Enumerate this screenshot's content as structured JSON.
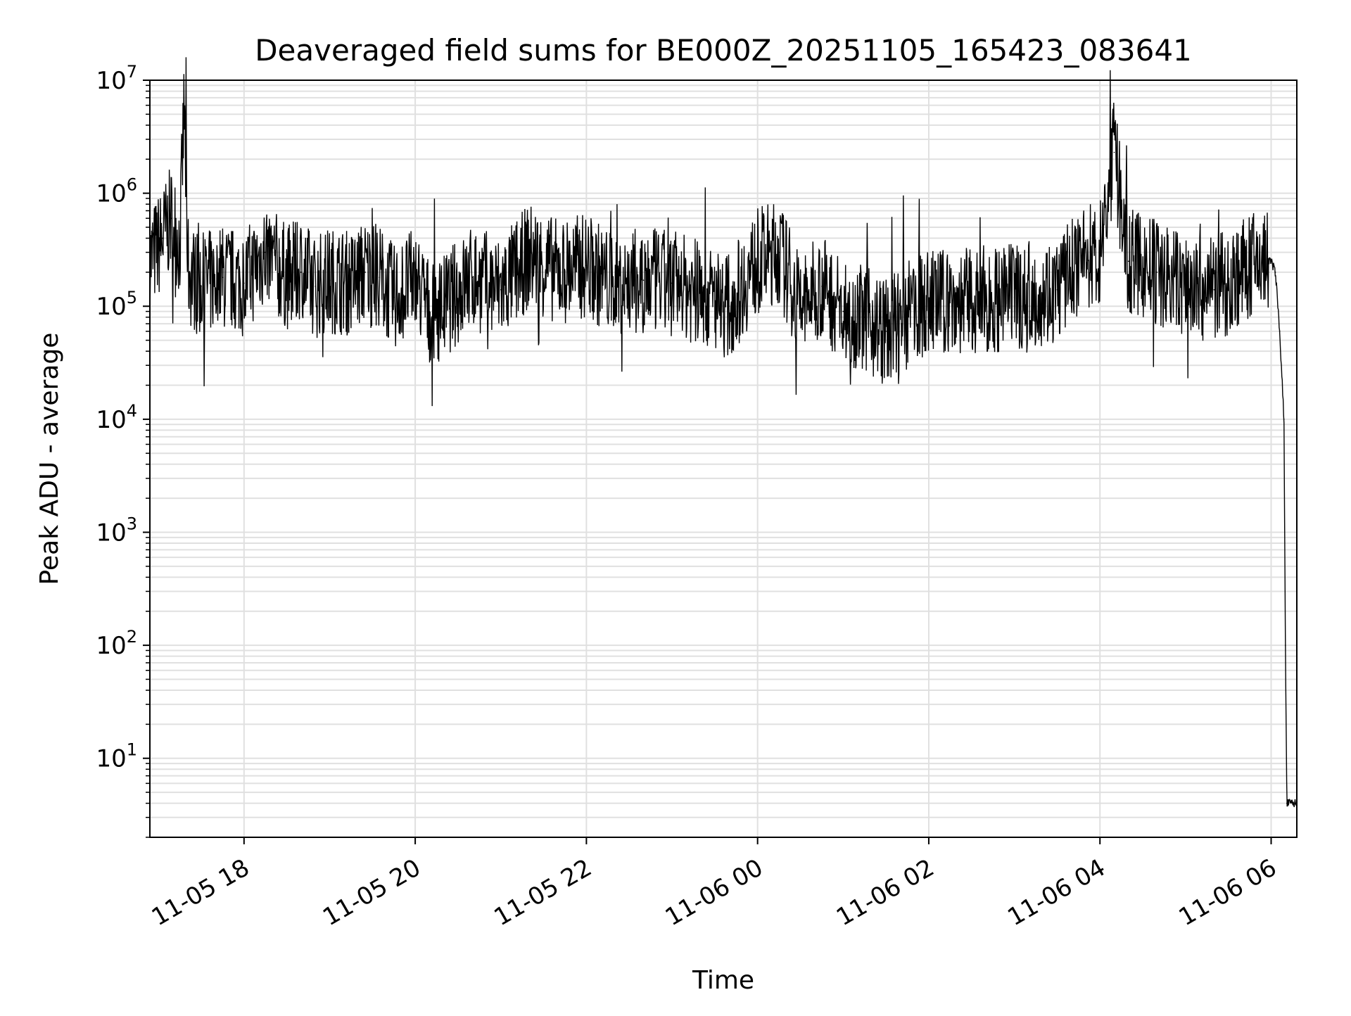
{
  "chart_data": {
    "type": "line",
    "title": "Deaveraged field sums for BE000Z_20251105_165423_083641",
    "xlabel": "Time",
    "ylabel": "Peak ADU - average",
    "yscale": "log",
    "ylim": [
      2,
      10000000
    ],
    "xlim": [
      "2025-11-05 16:54",
      "2025-11-06 06:18"
    ],
    "grid": true,
    "line_color": "#000000",
    "grid_color": "#e0e0e0",
    "x_ticks": [
      {
        "value": "2025-11-05 18:00",
        "label": "11-05 18"
      },
      {
        "value": "2025-11-05 20:00",
        "label": "11-05 20"
      },
      {
        "value": "2025-11-05 22:00",
        "label": "11-05 22"
      },
      {
        "value": "2025-11-06 00:00",
        "label": "11-06 00"
      },
      {
        "value": "2025-11-06 02:00",
        "label": "11-06 02"
      },
      {
        "value": "2025-11-06 04:00",
        "label": "11-06 04"
      },
      {
        "value": "2025-11-06 06:00",
        "label": "11-06 06"
      }
    ],
    "y_ticks": [
      {
        "value": 10,
        "base": "10",
        "exp": "1"
      },
      {
        "value": 100,
        "base": "10",
        "exp": "2"
      },
      {
        "value": 1000,
        "base": "10",
        "exp": "3"
      },
      {
        "value": 10000,
        "base": "10",
        "exp": "4"
      },
      {
        "value": 100000,
        "base": "10",
        "exp": "5"
      },
      {
        "value": 1000000,
        "base": "10",
        "exp": "6"
      },
      {
        "value": 10000000,
        "base": "10",
        "exp": "7"
      }
    ],
    "series": [
      {
        "x": [
          "2025-11-05 16:54",
          "2025-11-05 17:03",
          "2025-11-05 17:09",
          "2025-11-05 17:15",
          "2025-11-05 17:18",
          "2025-11-05 17:21",
          "2025-11-05 17:30",
          "2025-11-05 17:45",
          "2025-11-05 18:00",
          "2025-11-05 18:15",
          "2025-11-05 18:30",
          "2025-11-05 18:40",
          "2025-11-05 18:50",
          "2025-11-05 19:00",
          "2025-11-05 19:15",
          "2025-11-05 19:25",
          "2025-11-05 19:35",
          "2025-11-05 19:45",
          "2025-11-05 20:00",
          "2025-11-05 20:10",
          "2025-11-05 20:20",
          "2025-11-05 20:40",
          "2025-11-05 21:00",
          "2025-11-05 21:20",
          "2025-11-05 21:40",
          "2025-11-05 22:00",
          "2025-11-05 22:20",
          "2025-11-05 22:40",
          "2025-11-05 23:00",
          "2025-11-05 23:20",
          "2025-11-05 23:40",
          "2025-11-06 00:00",
          "2025-11-06 00:15",
          "2025-11-06 00:30",
          "2025-11-06 00:45",
          "2025-11-06 01:00",
          "2025-11-06 01:15",
          "2025-11-06 01:30",
          "2025-11-06 02:00",
          "2025-11-06 02:30",
          "2025-11-06 03:00",
          "2025-11-06 03:30",
          "2025-11-06 03:45",
          "2025-11-06 04:00",
          "2025-11-06 04:10",
          "2025-11-06 04:20",
          "2025-11-06 04:40",
          "2025-11-06 05:00",
          "2025-11-06 05:20",
          "2025-11-06 05:40",
          "2025-11-06 05:55",
          "2025-11-06 06:00",
          "2025-11-06 06:03",
          "2025-11-06 06:06",
          "2025-11-06 06:09",
          "2025-11-06 06:10",
          "2025-11-06 06:11",
          "2025-11-06 06:18"
        ],
        "y": [
          250000,
          400000,
          600000,
          350000,
          5800000,
          200000,
          150000,
          180000,
          160000,
          300000,
          180000,
          200000,
          150000,
          170000,
          160000,
          200000,
          180000,
          120000,
          170000,
          90000,
          100000,
          180000,
          140000,
          280000,
          200000,
          230000,
          150000,
          170000,
          160000,
          130000,
          100000,
          250000,
          300000,
          100000,
          150000,
          90000,
          80000,
          60000,
          110000,
          110000,
          120000,
          140000,
          250000,
          300000,
          2300000,
          250000,
          200000,
          150000,
          140000,
          200000,
          260000,
          250000,
          200000,
          60000,
          10000,
          100,
          4,
          4
        ]
      }
    ]
  }
}
